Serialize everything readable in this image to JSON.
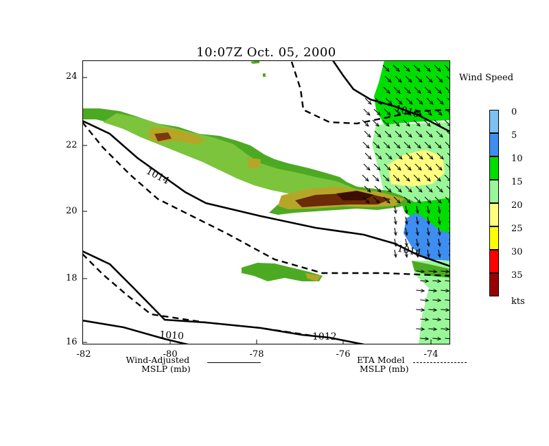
{
  "title": "10:07Z  Oct. 05, 2000",
  "axes": {
    "x_ticks": [
      "-82",
      "-80",
      "-78",
      "-76",
      "-74"
    ],
    "y_ticks": [
      "24",
      "22",
      "20",
      "18",
      "16"
    ]
  },
  "isobar_labels": {
    "a": "1014",
    "b": "1016",
    "c": "1014",
    "d": "1010",
    "e": "1012"
  },
  "legend": {
    "title": "Wind Speed",
    "levels": [
      {
        "label": "0",
        "color": "#7ec0f0"
      },
      {
        "label": "5",
        "color": "#3e8ef0"
      },
      {
        "label": "10",
        "color": "#00dd00"
      },
      {
        "label": "15",
        "color": "#99f799"
      },
      {
        "label": "20",
        "color": "#ffff80"
      },
      {
        "label": "25",
        "color": "#ffff00"
      },
      {
        "label": "30",
        "color": "#ff0000"
      },
      {
        "label": "35",
        "color": "#9b0000"
      }
    ],
    "unit": "kts"
  },
  "keys": {
    "wind_adjusted_line1": "Wind-Adjusted",
    "wind_adjusted_line2": "MSLP (mb)",
    "eta_line1": "ETA Model",
    "eta_line2": "MSLP (mb)"
  }
}
